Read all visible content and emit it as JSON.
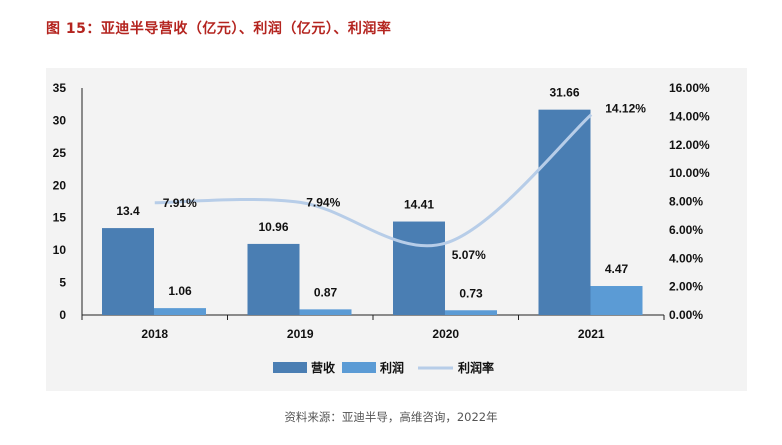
{
  "figure": {
    "title": "图 15：亚迪半导营收（亿元）、利润（亿元）、利润率",
    "source": "资料来源：亚迪半导，高维咨询，2022年"
  },
  "chart_data": {
    "type": "bar",
    "categories": [
      "2018",
      "2019",
      "2020",
      "2021"
    ],
    "series": [
      {
        "name": "营收",
        "kind": "bar",
        "axis": "left",
        "values": [
          13.4,
          10.96,
          14.41,
          31.66
        ],
        "labels": [
          "13.4",
          "10.96",
          "14.41",
          "31.66"
        ],
        "color": "#4a7eb3"
      },
      {
        "name": "利润",
        "kind": "bar",
        "axis": "left",
        "values": [
          1.06,
          0.87,
          0.73,
          4.47
        ],
        "labels": [
          "1.06",
          "0.87",
          "0.73",
          "4.47"
        ],
        "color": "#5b9bd5"
      },
      {
        "name": "利润率",
        "kind": "line",
        "axis": "right",
        "values": [
          7.91,
          7.94,
          5.07,
          14.12
        ],
        "labels": [
          "7.91%",
          "7.94%",
          "5.07%",
          "14.12%"
        ],
        "color": "#b7cde8"
      }
    ],
    "y_left": {
      "min": 0,
      "max": 35,
      "ticks": [
        "0",
        "5",
        "10",
        "15",
        "20",
        "25",
        "30",
        "35"
      ]
    },
    "y_right": {
      "min": 0,
      "max": 16,
      "ticks": [
        "0.00%",
        "2.00%",
        "4.00%",
        "6.00%",
        "8.00%",
        "10.00%",
        "12.00%",
        "14.00%",
        "16.00%"
      ]
    },
    "legend_position": "bottom",
    "grid": false
  }
}
